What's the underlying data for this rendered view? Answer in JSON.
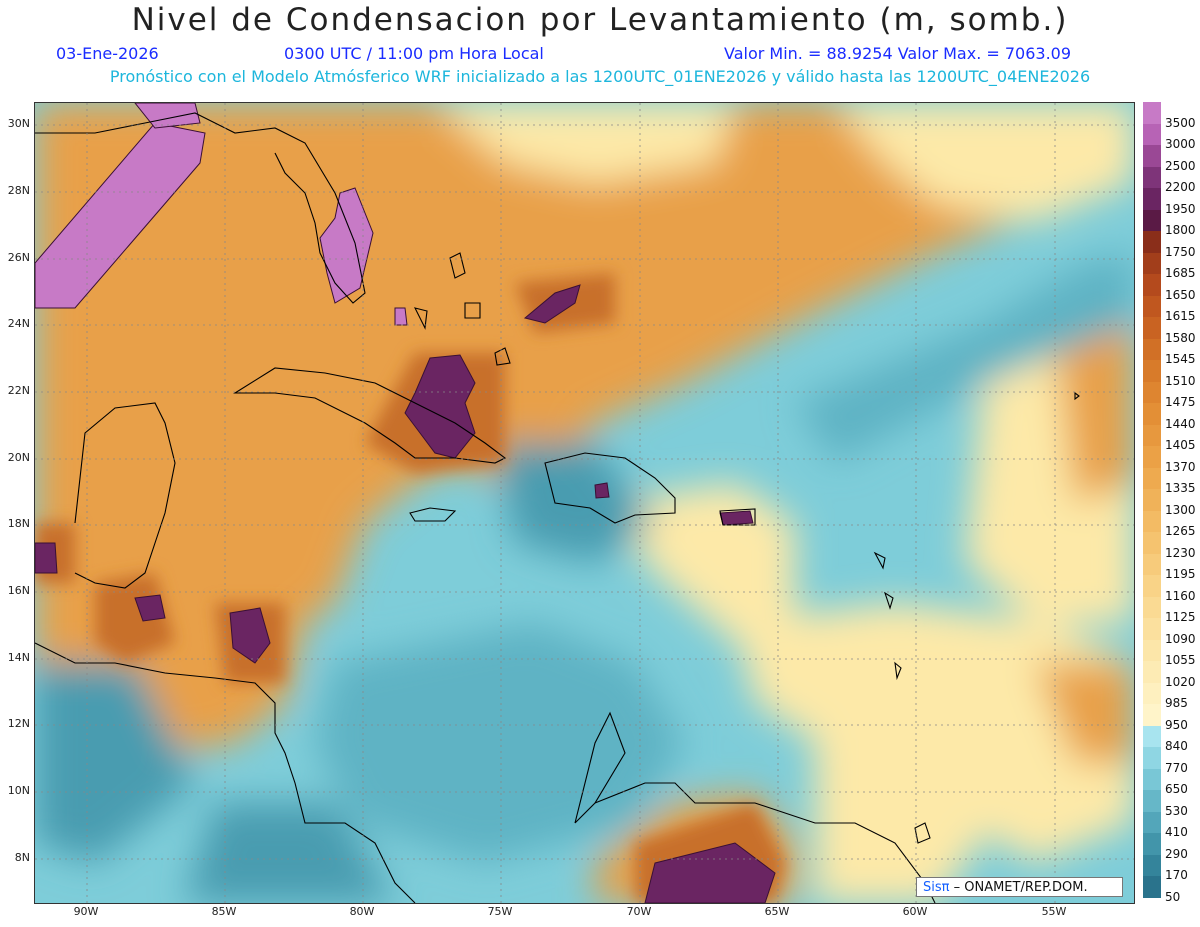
{
  "header": {
    "title": "Nivel de Condensacion por Levantamiento (m, somb.)",
    "date": "03-Ene-2026",
    "time": "0300 UTC / 11:00 pm Hora Local",
    "minmax": "Valor Min. = 88.9254  Valor Max. = 7063.09",
    "forecast_line": "Pronóstico con el Modelo Atmósferico WRF inicializado a las 1200UTC_01ENE2026 y válido hasta las  1200UTC_04ENE2026"
  },
  "axes": {
    "lat_labels": [
      "30N",
      "28N",
      "26N",
      "24N",
      "22N",
      "20N",
      "18N",
      "16N",
      "14N",
      "12N",
      "10N",
      "8N"
    ],
    "lon_labels": [
      "90W",
      "85W",
      "80W",
      "75W",
      "70W",
      "65W",
      "60W",
      "55W"
    ]
  },
  "legend": {
    "labels": [
      "3500",
      "3000",
      "2500",
      "2200",
      "1950",
      "1800",
      "1750",
      "1685",
      "1650",
      "1615",
      "1580",
      "1545",
      "1510",
      "1475",
      "1440",
      "1405",
      "1370",
      "1335",
      "1300",
      "1265",
      "1230",
      "1195",
      "1160",
      "1125",
      "1090",
      "1055",
      "1020",
      "985",
      "950",
      "840",
      "770",
      "650",
      "530",
      "410",
      "290",
      "170",
      "50"
    ],
    "colors": [
      "#c77ac6",
      "#b763b5",
      "#9a4895",
      "#7e3479",
      "#6a2562",
      "#5a1a45",
      "#8a2e1a",
      "#a23e1b",
      "#b44a1d",
      "#c0571f",
      "#c96322",
      "#d17026",
      "#d87b2a",
      "#de8530",
      "#e38f36",
      "#e7983e",
      "#eba146",
      "#eeaa4f",
      "#f0b259",
      "#f3bb64",
      "#f5c36f",
      "#f7cb7b",
      "#f9d387",
      "#fada93",
      "#fbe09e",
      "#fce6a9",
      "#fdebb4",
      "#fef0bf",
      "#fff4c9",
      "#a8e4ef",
      "#8fd6e3",
      "#79c7d6",
      "#66b7c8",
      "#53a6ba",
      "#4295aa",
      "#34849b",
      "#2a738c"
    ]
  },
  "map_colors": {
    "ocean_low": "#7ecdd9",
    "ocean_mid": "#5fb3c4",
    "ocean_deep": "#4a9cb0",
    "dry_orange": "#e8a04a",
    "dry_light": "#fde9a8",
    "dry_dark": "#c8702a",
    "high": "#6a2562",
    "very_high": "#c77ac6"
  },
  "credit": {
    "logo": "Sisπ",
    "text": "– ONAMET/REP.DOM."
  }
}
